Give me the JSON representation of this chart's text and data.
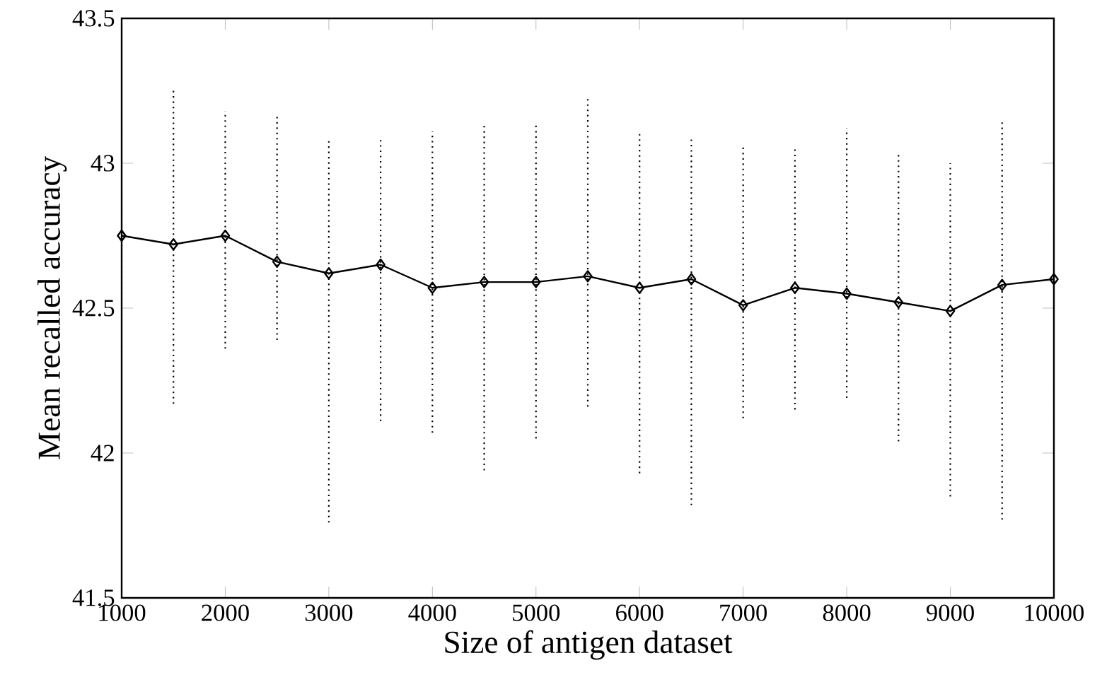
{
  "chart_data": {
    "type": "line",
    "xlabel": "Size of antigen dataset",
    "ylabel": "Mean recalled accuracy",
    "x": [
      1000,
      1500,
      2000,
      2500,
      3000,
      3500,
      4000,
      4500,
      5000,
      5500,
      6000,
      6500,
      7000,
      7500,
      8000,
      8500,
      9000,
      9500,
      10000
    ],
    "values": [
      42.75,
      42.72,
      42.75,
      42.66,
      42.62,
      42.65,
      42.57,
      42.59,
      42.59,
      42.61,
      42.57,
      42.6,
      42.51,
      42.57,
      42.55,
      42.52,
      42.49,
      42.58,
      42.6
    ],
    "errors": [
      [
        42.33,
        43.2
      ],
      [
        42.17,
        43.26
      ],
      [
        42.36,
        43.18
      ],
      [
        42.39,
        43.17
      ],
      [
        41.76,
        43.08
      ],
      [
        42.11,
        43.08
      ],
      [
        42.07,
        43.11
      ],
      [
        41.94,
        43.13
      ],
      [
        42.05,
        43.14
      ],
      [
        42.16,
        43.23
      ],
      [
        41.93,
        43.11
      ],
      [
        41.82,
        43.09
      ],
      [
        42.12,
        43.06
      ],
      [
        42.15,
        43.05
      ],
      [
        42.19,
        43.12
      ],
      [
        42.04,
        43.04
      ],
      [
        41.85,
        43.0
      ],
      [
        41.77,
        43.15
      ],
      [
        42.1,
        43.16
      ]
    ],
    "color": "#000000",
    "marker": "diamond",
    "line_style": "solid",
    "xlim": [
      1000,
      10000
    ],
    "ylim": [
      41.5,
      43.5
    ],
    "xticks": [
      1000,
      2000,
      3000,
      4000,
      5000,
      6000,
      7000,
      8000,
      9000,
      10000
    ],
    "yticks": [
      41.5,
      42,
      42.5,
      43,
      43.5
    ]
  }
}
